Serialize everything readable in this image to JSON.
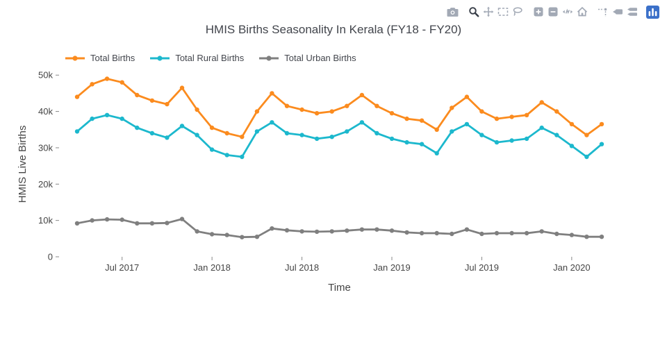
{
  "colors": {
    "modebar_inactive": "#a2a9b5",
    "modebar_active": "#383e48",
    "plotly_logo_blue": "#3b70c9",
    "axis_text": "#444444",
    "tick_color": "#888888"
  },
  "modebar": {
    "active": "zoom-icon",
    "groups": [
      [
        "camera-icon"
      ],
      [
        "zoom-icon",
        "pan-icon",
        "box-select-icon",
        "lasso-icon"
      ],
      [
        "zoom-in-icon",
        "zoom-out-icon",
        "autoscale-icon",
        "reset-axes-icon"
      ],
      [
        "spikelines-icon",
        "hover-closest-icon",
        "hover-compare-icon"
      ],
      [
        "plotly-logo-icon"
      ]
    ]
  },
  "chart_data": {
    "type": "line",
    "title": "HMIS Births Seasonality In Kerala (FY18 - FY20)",
    "xlabel": "Time",
    "ylabel": "HMIS Live Births",
    "ylim": [
      0,
      51000
    ],
    "grid": false,
    "legend_position": "top-left-horizontal",
    "marker": true,
    "yticks": [
      {
        "value": 0,
        "label": "0"
      },
      {
        "value": 10000,
        "label": "10k"
      },
      {
        "value": 20000,
        "label": "20k"
      },
      {
        "value": 30000,
        "label": "30k"
      },
      {
        "value": 40000,
        "label": "40k"
      },
      {
        "value": 50000,
        "label": "50k"
      }
    ],
    "x": [
      "Apr 2017",
      "May 2017",
      "Jun 2017",
      "Jul 2017",
      "Aug 2017",
      "Sep 2017",
      "Oct 2017",
      "Nov 2017",
      "Dec 2017",
      "Jan 2018",
      "Feb 2018",
      "Mar 2018",
      "Apr 2018",
      "May 2018",
      "Jun 2018",
      "Jul 2018",
      "Aug 2018",
      "Sep 2018",
      "Oct 2018",
      "Nov 2018",
      "Dec 2018",
      "Jan 2019",
      "Feb 2019",
      "Mar 2019",
      "Apr 2019",
      "May 2019",
      "Jun 2019",
      "Jul 2019",
      "Aug 2019",
      "Sep 2019",
      "Oct 2019",
      "Nov 2019",
      "Dec 2019",
      "Jan 2020",
      "Feb 2020",
      "Mar 2020"
    ],
    "xticks": [
      {
        "index": 3,
        "label": "Jul 2017"
      },
      {
        "index": 9,
        "label": "Jan 2018"
      },
      {
        "index": 15,
        "label": "Jul 2018"
      },
      {
        "index": 21,
        "label": "Jan 2019"
      },
      {
        "index": 27,
        "label": "Jul 2019"
      },
      {
        "index": 33,
        "label": "Jan 2020"
      }
    ],
    "series": [
      {
        "name": "Total Births",
        "color": "#fb8b1e",
        "values": [
          44000,
          47500,
          49000,
          48000,
          44500,
          43000,
          42000,
          46500,
          40500,
          35500,
          34000,
          33000,
          40000,
          45000,
          41500,
          40500,
          39500,
          40000,
          41500,
          44500,
          41500,
          39500,
          38000,
          37500,
          35000,
          41000,
          44000,
          40000,
          38000,
          38500,
          39000,
          42500,
          40000,
          36500,
          33500,
          36500
        ]
      },
      {
        "name": "Total Rural Births",
        "color": "#1cb8cd",
        "values": [
          34500,
          38000,
          39000,
          38000,
          35500,
          34000,
          32800,
          36000,
          33500,
          29500,
          28000,
          27500,
          34500,
          37000,
          34000,
          33500,
          32500,
          33000,
          34500,
          37000,
          34000,
          32500,
          31500,
          31000,
          28500,
          34500,
          36500,
          33500,
          31500,
          32000,
          32500,
          35500,
          33500,
          30500,
          27500,
          31000
        ]
      },
      {
        "name": "Total Urban Births",
        "color": "#7f7f7f",
        "values": [
          9200,
          10000,
          10300,
          10200,
          9200,
          9200,
          9300,
          10400,
          7000,
          6200,
          6000,
          5400,
          5500,
          7800,
          7300,
          7000,
          6900,
          7000,
          7200,
          7500,
          7500,
          7200,
          6700,
          6500,
          6500,
          6300,
          7500,
          6300,
          6500,
          6500,
          6500,
          7000,
          6300,
          6000,
          5500,
          5500
        ]
      }
    ]
  }
}
